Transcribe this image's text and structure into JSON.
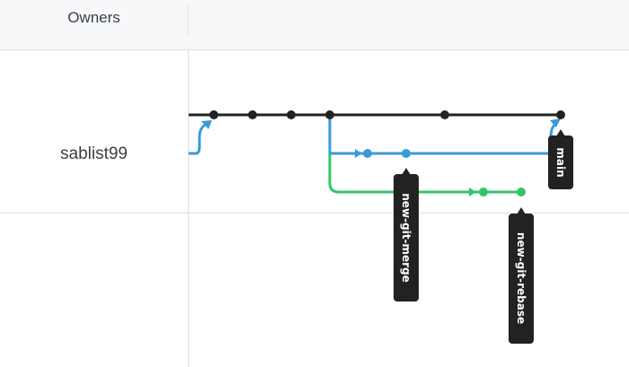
{
  "table": {
    "owners_header": "Owners",
    "owner_name": "sablist99"
  },
  "graph": {
    "colors": {
      "main": "#222222",
      "merge_branch": "#3a9ad9",
      "rebase_branch": "#33c46b",
      "label_bg": "#222222"
    },
    "branch_labels": {
      "main": "main",
      "merge": "new-git-merge",
      "rebase": "new-git-rebase"
    }
  }
}
